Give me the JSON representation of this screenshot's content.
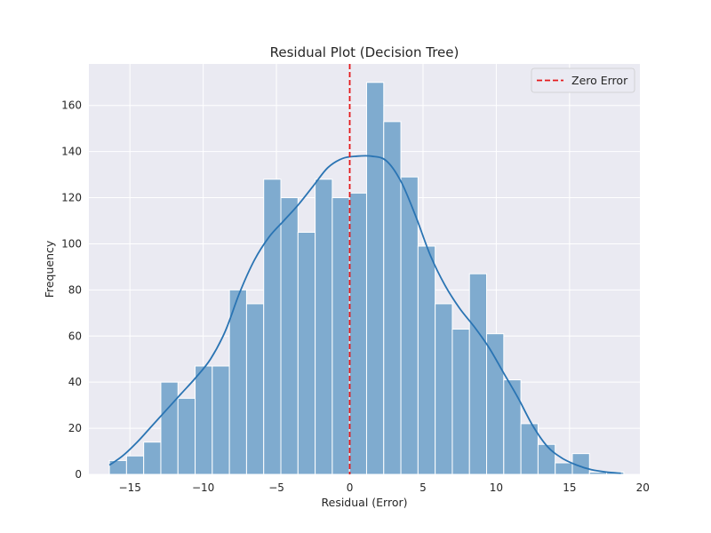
{
  "chart_data": {
    "type": "bar",
    "title": "Residual Plot (Decision Tree)",
    "xlabel": "Residual (Error)",
    "ylabel": "Frequency",
    "xlim": [
      -17.8,
      19.8
    ],
    "ylim": [
      0,
      178
    ],
    "xticks": [
      -15,
      -10,
      -5,
      0,
      5,
      10,
      15,
      20
    ],
    "yticks": [
      0,
      20,
      40,
      60,
      80,
      100,
      120,
      140,
      160
    ],
    "grid": true,
    "legend_position": "top-right",
    "bin_start": -16.4,
    "bin_width": 1.17,
    "counts": [
      6,
      8,
      14,
      40,
      33,
      47,
      47,
      80,
      74,
      128,
      120,
      105,
      128,
      120,
      122,
      170,
      153,
      129,
      99,
      74,
      63,
      87,
      61,
      41,
      22,
      13,
      5,
      9,
      1,
      1
    ],
    "kde": {
      "x": [
        -16.4,
        -15.5,
        -14.5,
        -13.5,
        -12.5,
        -11.5,
        -10.5,
        -9.5,
        -8.5,
        -7.5,
        -6.5,
        -5.5,
        -4.5,
        -3.5,
        -2.5,
        -1.5,
        -0.5,
        0.5,
        1.5,
        2.5,
        3.5,
        4.5,
        5.5,
        6.5,
        7.5,
        8.5,
        9.5,
        10.5,
        11.5,
        12.5,
        13.5,
        14.5,
        15.5,
        16.5,
        17.5,
        18.5
      ],
      "y": [
        4,
        8,
        14,
        21,
        28,
        35,
        42,
        50,
        62,
        79,
        93,
        103,
        110,
        117,
        125,
        133,
        137,
        138,
        138,
        136,
        127,
        112,
        95,
        82,
        72,
        64,
        55,
        44,
        33,
        21,
        12,
        7,
        4,
        2,
        1,
        0.5
      ]
    },
    "reference_line": {
      "x": 0,
      "label": "Zero Error",
      "color": "#e41a1c",
      "style": "dashed"
    },
    "colors": {
      "bar_fill": "#7fabcf",
      "bar_edge": "#ffffff",
      "kde_line": "#2a74b3",
      "plot_background": "#eaeaf2",
      "grid": "#ffffff"
    }
  }
}
